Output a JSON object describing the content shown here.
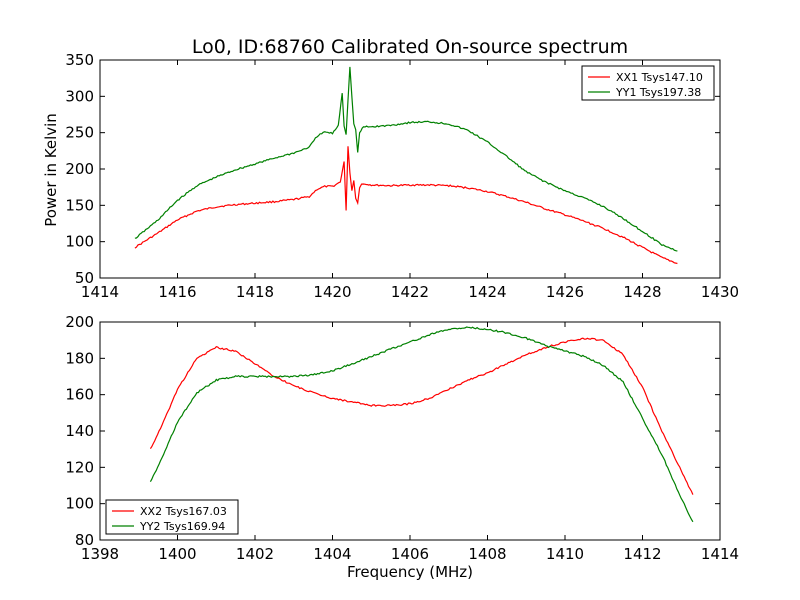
{
  "figure": {
    "title": "Lo0, ID:68760 Calibrated On-source spectrum",
    "xlabel": "Frequency (MHz)",
    "top_ylabel": "Power in Kelvin"
  },
  "chart_data": [
    {
      "type": "line",
      "title": "Lo0, ID:68760 Calibrated On-source spectrum",
      "xlabel": "",
      "ylabel": "Power in Kelvin",
      "xlim": [
        1414,
        1430
      ],
      "ylim": [
        50,
        350
      ],
      "xticks": [
        1414,
        1416,
        1418,
        1420,
        1422,
        1424,
        1426,
        1428,
        1430
      ],
      "yticks": [
        50,
        100,
        150,
        200,
        250,
        300,
        350
      ],
      "grid": false,
      "legend": "top-right",
      "series": [
        {
          "name": "XX1 Tsys147.10",
          "color": "#ff0000",
          "x": [
            1414.9,
            1415.5,
            1416.0,
            1416.5,
            1417.0,
            1417.5,
            1418.0,
            1418.5,
            1419.0,
            1419.4,
            1419.6,
            1419.8,
            1420.0,
            1420.2,
            1420.3,
            1420.35,
            1420.4,
            1420.45,
            1420.5,
            1420.55,
            1420.6,
            1420.65,
            1420.7,
            1420.75,
            1420.8,
            1420.9,
            1421.0,
            1421.5,
            1422.0,
            1422.5,
            1423.0,
            1423.5,
            1424.0,
            1424.5,
            1425.0,
            1425.5,
            1426.0,
            1426.5,
            1427.0,
            1427.5,
            1428.0,
            1428.5,
            1428.9
          ],
          "y": [
            92,
            112,
            130,
            142,
            148,
            151,
            153,
            155,
            158,
            162,
            172,
            176,
            176,
            182,
            210,
            142,
            232,
            195,
            170,
            185,
            160,
            153,
            175,
            180,
            179,
            179,
            178,
            177,
            178,
            178,
            177,
            174,
            169,
            162,
            154,
            145,
            137,
            128,
            118,
            106,
            92,
            78,
            70
          ]
        },
        {
          "name": "YY1 Tsys197.38",
          "color": "#008000",
          "x": [
            1414.9,
            1415.5,
            1416.0,
            1416.5,
            1417.0,
            1417.5,
            1418.0,
            1418.5,
            1419.0,
            1419.4,
            1419.6,
            1419.8,
            1420.0,
            1420.15,
            1420.25,
            1420.3,
            1420.35,
            1420.4,
            1420.45,
            1420.5,
            1420.55,
            1420.6,
            1420.65,
            1420.7,
            1420.8,
            1421.0,
            1421.5,
            1422.0,
            1422.5,
            1423.0,
            1423.5,
            1424.0,
            1424.5,
            1425.0,
            1425.5,
            1426.0,
            1426.5,
            1427.0,
            1427.5,
            1428.0,
            1428.5,
            1428.9
          ],
          "y": [
            104,
            130,
            157,
            177,
            189,
            199,
            207,
            215,
            222,
            230,
            245,
            251,
            249,
            260,
            305,
            260,
            248,
            295,
            340,
            300,
            262,
            254,
            222,
            250,
            258,
            258,
            260,
            264,
            265,
            262,
            253,
            237,
            217,
            196,
            182,
            170,
            160,
            148,
            132,
            114,
            96,
            87
          ]
        }
      ]
    },
    {
      "type": "line",
      "title": "",
      "xlabel": "Frequency (MHz)",
      "ylabel": "",
      "xlim": [
        1398,
        1414
      ],
      "ylim": [
        80,
        200
      ],
      "xticks": [
        1398,
        1400,
        1402,
        1404,
        1406,
        1408,
        1410,
        1412,
        1414
      ],
      "yticks": [
        80,
        100,
        120,
        140,
        160,
        180,
        200
      ],
      "grid": false,
      "legend": "bottom-left",
      "series": [
        {
          "name": "XX2 Tsys167.03",
          "color": "#ff0000",
          "x": [
            1399.3,
            1399.6,
            1400.0,
            1400.5,
            1401.0,
            1401.5,
            1402.0,
            1402.5,
            1403.0,
            1403.5,
            1404.0,
            1404.5,
            1405.0,
            1405.5,
            1406.0,
            1406.5,
            1407.0,
            1407.5,
            1408.0,
            1408.5,
            1409.0,
            1409.5,
            1410.0,
            1410.5,
            1411.0,
            1411.5,
            1412.0,
            1412.5,
            1413.0,
            1413.3
          ],
          "y": [
            130,
            143,
            163,
            180,
            186,
            184,
            177,
            170,
            165,
            161,
            158,
            156,
            154,
            154,
            155,
            158,
            163,
            168,
            172,
            177,
            182,
            186,
            189,
            191,
            190,
            182,
            164,
            140,
            118,
            105
          ]
        },
        {
          "name": "YY2 Tsys169.94",
          "color": "#008000",
          "x": [
            1399.3,
            1399.6,
            1400.0,
            1400.5,
            1401.0,
            1401.5,
            1402.0,
            1402.5,
            1403.0,
            1403.5,
            1404.0,
            1404.5,
            1405.0,
            1405.5,
            1406.0,
            1406.5,
            1407.0,
            1407.5,
            1408.0,
            1408.5,
            1409.0,
            1409.5,
            1410.0,
            1410.5,
            1411.0,
            1411.5,
            1412.0,
            1412.5,
            1413.0,
            1413.3
          ],
          "y": [
            112,
            125,
            145,
            161,
            168,
            170,
            170,
            170,
            170,
            171,
            173,
            177,
            181,
            185,
            189,
            193,
            196,
            197,
            196,
            194,
            191,
            187,
            184,
            181,
            176,
            167,
            147,
            127,
            103,
            90
          ]
        }
      ]
    }
  ]
}
